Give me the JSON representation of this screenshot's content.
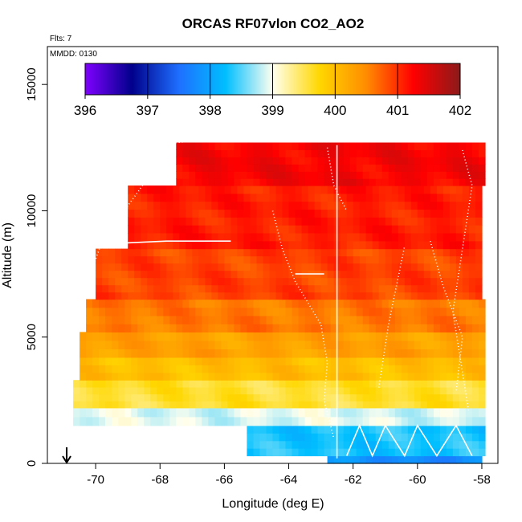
{
  "chart_data": {
    "type": "heatmap",
    "title": "ORCAS RF07vlon CO2_AO2",
    "subtitle_flights": "Flts: 7",
    "subtitle_date": "MMDD: 0130",
    "xlabel": "Longitude (deg E)",
    "ylabel": "Altitude (m)",
    "xlim": [
      -71.5,
      -57.5
    ],
    "ylim": [
      0,
      16500
    ],
    "x_ticks": [
      -70,
      -68,
      -66,
      -64,
      -62,
      -60,
      -58
    ],
    "x_tick_labels": [
      "-70",
      "-68",
      "-66",
      "-64",
      "-62",
      "-60",
      "-58"
    ],
    "y_ticks": [
      0,
      5000,
      10000,
      15000
    ],
    "y_tick_labels": [
      "0",
      "5000",
      "10000",
      "15000"
    ],
    "colorbar": {
      "min": 396,
      "max": 402,
      "ticks": [
        396,
        397,
        398,
        399,
        400,
        401,
        402
      ],
      "tick_labels": [
        "396",
        "397",
        "398",
        "399",
        "400",
        "401",
        "402"
      ],
      "colors": [
        "#7f00ff",
        "#00008b",
        "#1e6fff",
        "#00bfff",
        "#fffff0",
        "#ffd700",
        "#ff8c00",
        "#ff0000",
        "#8b1a1a"
      ]
    },
    "layers": [
      {
        "alt_range": [
          0,
          300
        ],
        "lon_range": [
          -62.8,
          -58.0
        ],
        "co2": 397.8
      },
      {
        "alt_range": [
          300,
          1500
        ],
        "lon_range": [
          -65.3,
          -58.0
        ],
        "co2": 398.3
      },
      {
        "alt_range": [
          1500,
          2200
        ],
        "lon_range": [
          -70.7,
          -58.0
        ],
        "co2": 398.9
      },
      {
        "alt_range": [
          2200,
          3300
        ],
        "lon_range": [
          -70.7,
          -58.0
        ],
        "co2": 399.6
      },
      {
        "alt_range": [
          3300,
          4200
        ],
        "lon_range": [
          -70.5,
          -58.0
        ],
        "co2": 400.0
      },
      {
        "alt_range": [
          4200,
          5200
        ],
        "lon_range": [
          -70.5,
          -58.0
        ],
        "co2": 400.3
      },
      {
        "alt_range": [
          5200,
          6500
        ],
        "lon_range": [
          -70.3,
          -58.0
        ],
        "co2": 400.6
      },
      {
        "alt_range": [
          6500,
          8500
        ],
        "lon_range": [
          -70.0,
          -58.0
        ],
        "co2": 400.9
      },
      {
        "alt_range": [
          8500,
          11000
        ],
        "lon_range": [
          -69.0,
          -58.0
        ],
        "co2": 401.1
      },
      {
        "alt_range": [
          11000,
          12700
        ],
        "lon_range": [
          -67.5,
          -58.0
        ],
        "co2": 401.3
      }
    ],
    "marker": {
      "lon": -70.9,
      "alt": 0,
      "symbol": "down-arrow"
    }
  }
}
